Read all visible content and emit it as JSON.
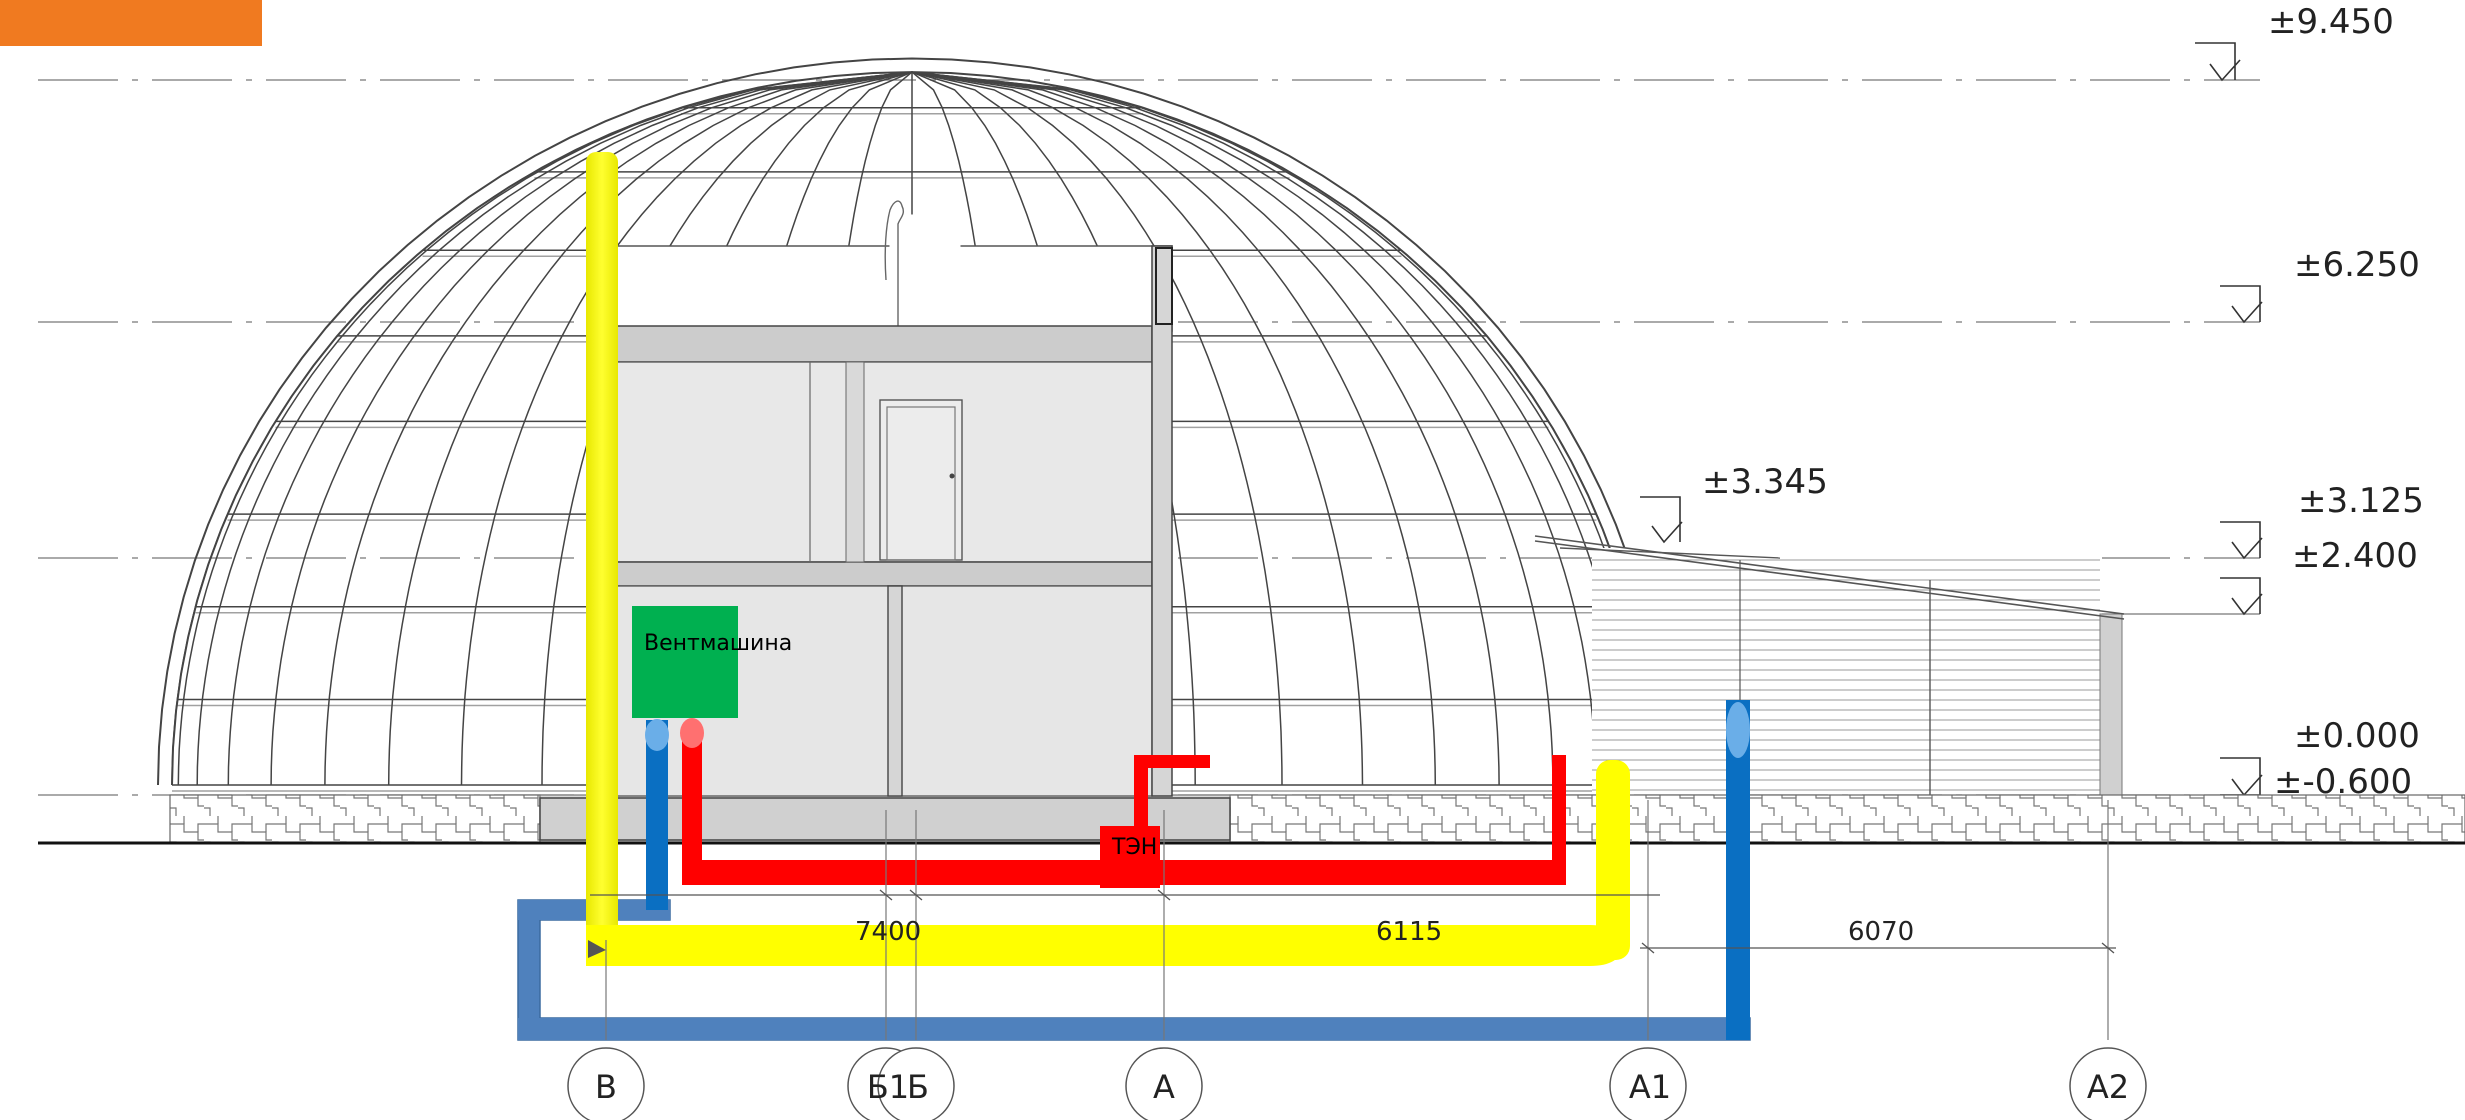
{
  "levels": [
    {
      "label": "±9.450"
    },
    {
      "label": "±6.250"
    },
    {
      "label": "±3.345"
    },
    {
      "label": "±3.125"
    },
    {
      "label": "±2.400"
    },
    {
      "label": "±0.000"
    },
    {
      "label": "±-0.600"
    }
  ],
  "axes": [
    {
      "label": "В"
    },
    {
      "label": "Б1"
    },
    {
      "label": "Б"
    },
    {
      "label": "А"
    },
    {
      "label": "А1"
    },
    {
      "label": "А2"
    }
  ],
  "dimensions": [
    {
      "label": "7400"
    },
    {
      "label": "6115"
    },
    {
      "label": "6070"
    }
  ],
  "labels": {
    "ventmashina": "Вентмашина",
    "ten": "ТЭН"
  },
  "colors": {
    "supply_duct": "#ffff00",
    "cold_pipe": "#0a6fc2",
    "hot_pipe": "#ff0000",
    "ventmashina_box": "#00b050",
    "ground_duct": "#4f81bd",
    "corner_badge": "#f07a20"
  }
}
